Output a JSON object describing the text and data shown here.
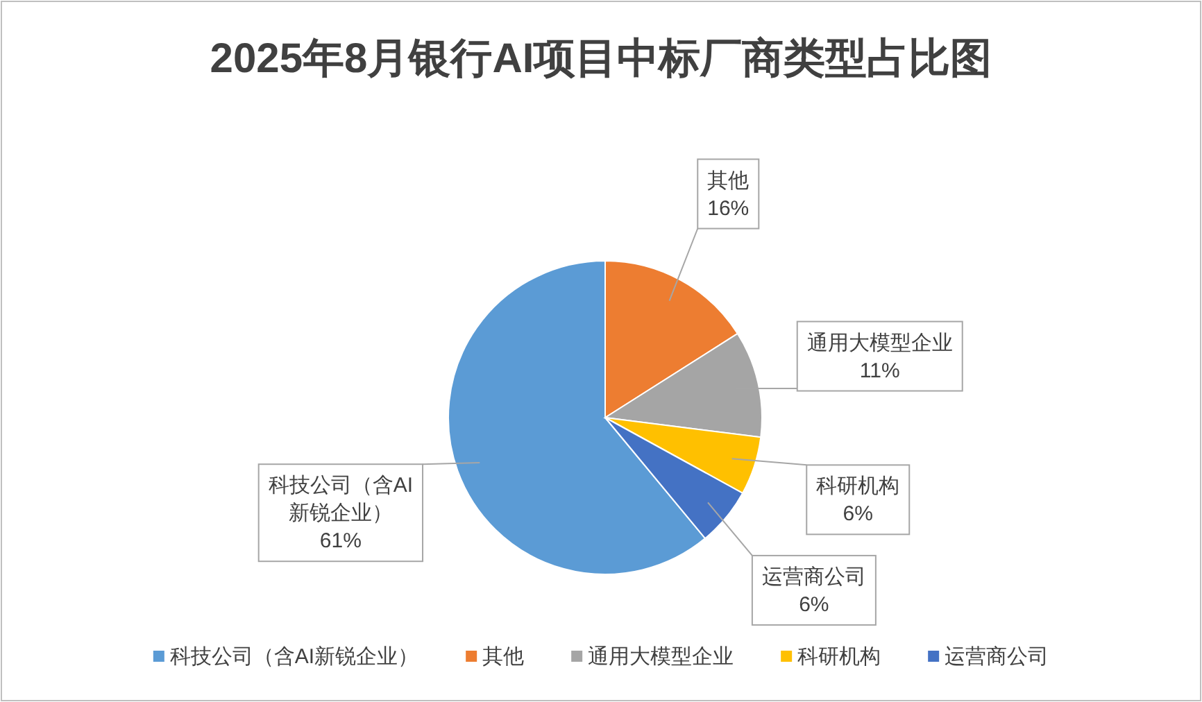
{
  "chart_data": {
    "type": "pie",
    "title": "2025年8月银行AI项目中标厂商类型占比图",
    "categories": [
      "科技公司（含AI新锐企业）",
      "其他",
      "通用大模型企业",
      "科研机构",
      "运营商公司"
    ],
    "values": [
      61,
      16,
      11,
      6,
      6
    ],
    "colors": [
      "#5b9bd5",
      "#ed7d31",
      "#a5a5a5",
      "#ffc000",
      "#4472c4"
    ],
    "value_labels": [
      "61%",
      "16%",
      "11%",
      "6%",
      "6%"
    ],
    "legend": "bottom"
  }
}
